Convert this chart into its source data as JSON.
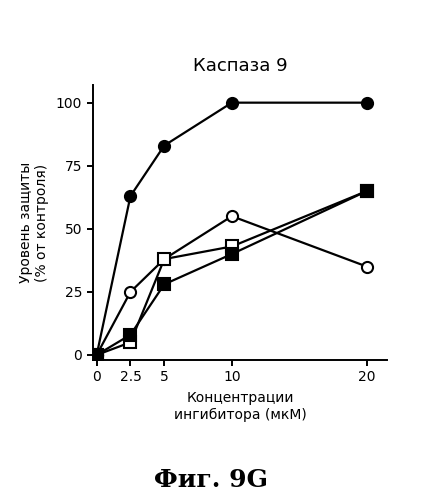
{
  "title": "Каспаза 9",
  "xlabel": "Концентрации\nингибитора (мкМ)",
  "ylabel": "Уровень защиты\n(% от контроля)",
  "footer": "Фиг. 9G",
  "x": [
    0,
    2.5,
    5,
    10,
    20
  ],
  "series": [
    {
      "label": "filled_circle",
      "y": [
        0,
        63,
        83,
        100,
        100
      ],
      "marker": "o",
      "fillstyle": "full",
      "color": "black"
    },
    {
      "label": "open_circle",
      "y": [
        0,
        25,
        38,
        55,
        35
      ],
      "marker": "o",
      "fillstyle": "none",
      "color": "black"
    },
    {
      "label": "open_square",
      "y": [
        0,
        5,
        38,
        43,
        65
      ],
      "marker": "s",
      "fillstyle": "none",
      "color": "black"
    },
    {
      "label": "filled_square",
      "y": [
        0,
        8,
        28,
        40,
        65
      ],
      "marker": "s",
      "fillstyle": "full",
      "color": "black"
    }
  ],
  "xlim": [
    -0.3,
    21.5
  ],
  "ylim": [
    -2,
    107
  ],
  "xticks": [
    0,
    2.5,
    5,
    10,
    20
  ],
  "yticks": [
    0,
    25,
    50,
    75,
    100
  ],
  "bg_color": "white",
  "title_fontsize": 13,
  "axis_label_fontsize": 10,
  "tick_fontsize": 10,
  "footer_fontsize": 18,
  "marker_size": 8,
  "line_width": 1.6
}
